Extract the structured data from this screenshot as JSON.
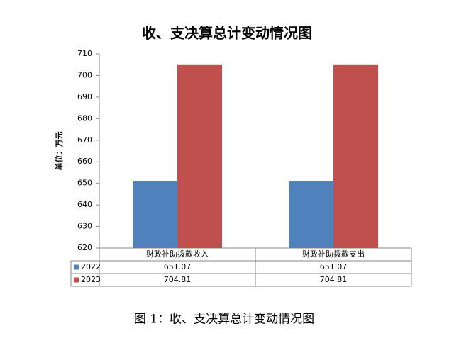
{
  "chart_data": {
    "type": "bar",
    "title": "收、支决算总计变动情况图",
    "y_label": "单位：万元",
    "categories": [
      "财政补助拨款收入",
      "财政补助拨款支出"
    ],
    "series": [
      {
        "name": "2022",
        "color": "#4f81bd",
        "values": [
          651.07,
          651.07
        ]
      },
      {
        "name": "2023",
        "color": "#c0504d",
        "values": [
          704.81,
          704.81
        ]
      }
    ],
    "ylim": [
      620,
      710
    ],
    "yticks": [
      620,
      630,
      640,
      650,
      660,
      670,
      680,
      690,
      700,
      710
    ],
    "grid": false,
    "caption": "图 1：收、支决算总计变动情况图"
  }
}
